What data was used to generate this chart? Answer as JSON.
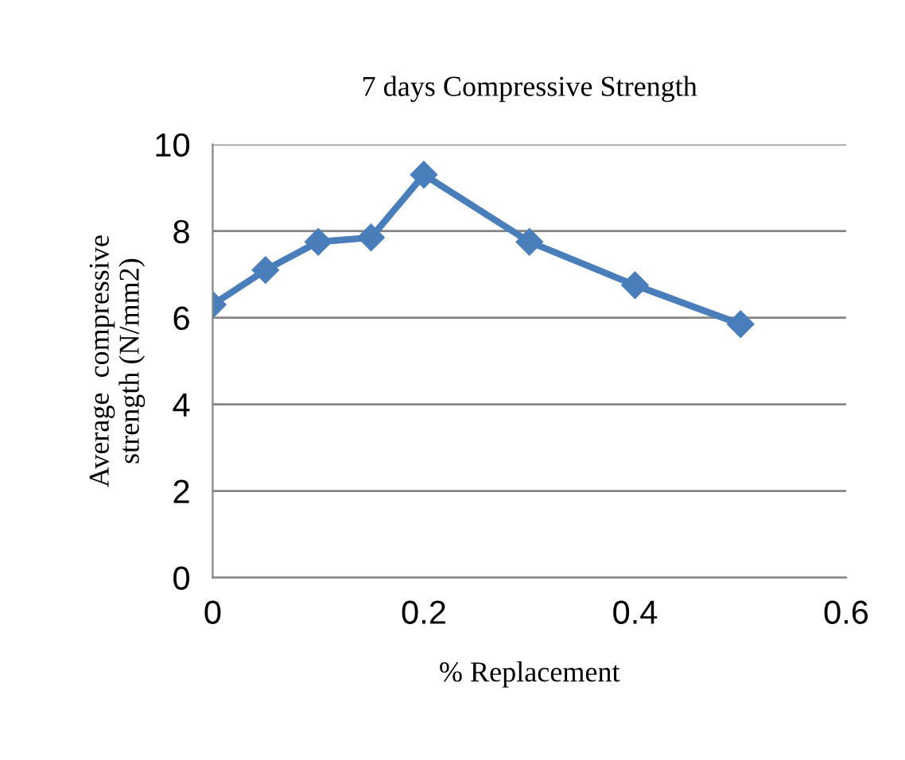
{
  "chart_data": {
    "type": "line",
    "title": "7 days Compressive Strength",
    "xlabel": "% Replacement",
    "ylabel": "Average  compressive\nstrength (N/mm2)",
    "x": [
      0,
      0.05,
      0.1,
      0.15,
      0.2,
      0.3,
      0.4,
      0.5
    ],
    "series": [
      {
        "color": "#4a7ebb",
        "values": [
          6.3,
          7.1,
          7.75,
          7.85,
          9.3,
          7.75,
          6.75,
          5.85
        ]
      }
    ],
    "xlim": [
      0,
      0.6
    ],
    "xticks": [
      0,
      0.2,
      0.4,
      0.6
    ],
    "ylim": [
      0,
      10
    ],
    "yticks": [
      0,
      2,
      4,
      6,
      8,
      10
    ],
    "grid": "y",
    "marker": "diamond",
    "line_style": "solid",
    "legend": false
  }
}
